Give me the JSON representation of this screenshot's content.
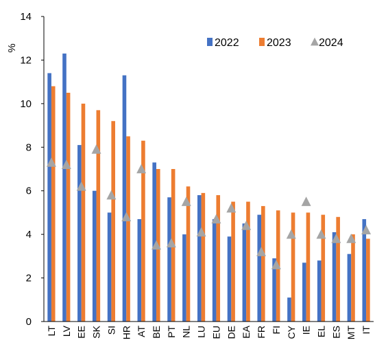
{
  "chart_data": {
    "type": "bar",
    "ylabel": "%",
    "ylim": [
      0,
      14
    ],
    "yticks": [
      0,
      2,
      4,
      6,
      8,
      10,
      12,
      14
    ],
    "grid": false,
    "legend_position": "top-right",
    "categories": [
      "LT",
      "LV",
      "EE",
      "SK",
      "SI",
      "HR",
      "AT",
      "BE",
      "PT",
      "NL",
      "LU",
      "EU",
      "DE",
      "EA",
      "FR",
      "FI",
      "CY",
      "IE",
      "EL",
      "ES",
      "MT",
      "IT"
    ],
    "series": [
      {
        "name": "2022",
        "mark": "bar",
        "color": "#4472C4",
        "values": [
          11.4,
          12.3,
          8.1,
          6.0,
          5.0,
          11.3,
          4.7,
          7.3,
          5.7,
          4.0,
          5.8,
          4.7,
          3.9,
          4.5,
          4.9,
          2.9,
          1.1,
          2.7,
          2.8,
          4.1,
          3.1,
          4.7
        ]
      },
      {
        "name": "2023",
        "mark": "bar",
        "color": "#ED7D31",
        "values": [
          10.8,
          10.5,
          10.0,
          9.7,
          9.2,
          8.5,
          8.3,
          7.0,
          7.0,
          6.2,
          5.9,
          5.8,
          5.5,
          5.5,
          5.3,
          5.1,
          5.0,
          5.0,
          4.9,
          4.8,
          4.0,
          3.8
        ]
      },
      {
        "name": "2024",
        "mark": "triangle",
        "color": "#A5A5A5",
        "values": [
          7.3,
          7.2,
          6.2,
          7.9,
          5.8,
          4.8,
          7.0,
          3.5,
          3.6,
          5.5,
          4.1,
          4.7,
          5.2,
          4.4,
          3.2,
          2.6,
          4.0,
          5.5,
          4.0,
          3.8,
          3.8,
          4.2
        ]
      }
    ]
  }
}
